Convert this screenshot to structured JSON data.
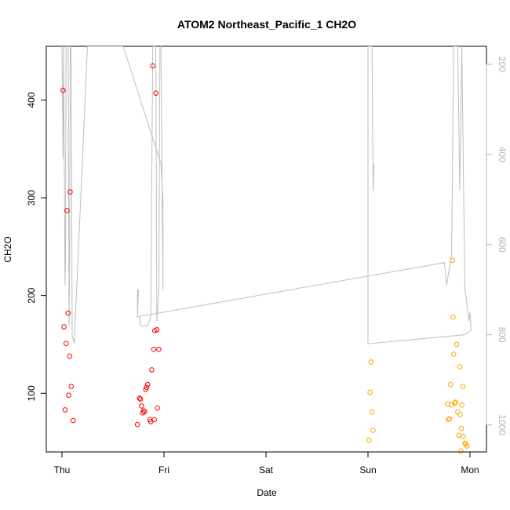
{
  "chart_data": {
    "type": "scatter",
    "title": "ATOM2 Northeast_Pacific_1 CH2O",
    "xlabel": "Date",
    "ylabel": "CH2O",
    "x_ticks": [
      "Thu",
      "Fri",
      "Sat",
      "Sun",
      "Mon"
    ],
    "x_range_days": [
      -0.08,
      4.16
    ],
    "ylim": [
      40,
      455
    ],
    "y_ticks": [
      100,
      200,
      300,
      400
    ],
    "y2_ticks": [
      200,
      400,
      600,
      800,
      1000
    ],
    "y2lim": [
      1060,
      160
    ],
    "y2_reversed": true,
    "grid": false,
    "colors": {
      "series1": "#ff0000",
      "series2": "#ffa500",
      "pressure_line": "#bebebe",
      "axis": "#000000",
      "y2_axis": "#b4b4b4"
    },
    "series": [
      {
        "color": "#ff0000",
        "points": [
          [
            0.01,
            410
          ],
          [
            0.02,
            168
          ],
          [
            0.03,
            83
          ],
          [
            0.04,
            151
          ],
          [
            0.05,
            287
          ],
          [
            0.06,
            182
          ],
          [
            0.065,
            98
          ],
          [
            0.075,
            138
          ],
          [
            0.08,
            306
          ],
          [
            0.09,
            107
          ],
          [
            0.11,
            72
          ],
          [
            0.74,
            68
          ],
          [
            0.76,
            95
          ],
          [
            0.77,
            94
          ],
          [
            0.78,
            87
          ],
          [
            0.79,
            80
          ],
          [
            0.8,
            82
          ],
          [
            0.81,
            81
          ],
          [
            0.82,
            104
          ],
          [
            0.83,
            106
          ],
          [
            0.84,
            109
          ],
          [
            0.86,
            73
          ],
          [
            0.87,
            71
          ],
          [
            0.88,
            124
          ],
          [
            0.89,
            435
          ],
          [
            0.9,
            145
          ],
          [
            0.905,
            73
          ],
          [
            0.91,
            164
          ],
          [
            0.92,
            407
          ],
          [
            0.93,
            165
          ],
          [
            0.935,
            85
          ],
          [
            0.95,
            145
          ]
        ]
      },
      {
        "color": "#ffa500",
        "points": [
          [
            3.01,
            52
          ],
          [
            3.02,
            101
          ],
          [
            3.03,
            132
          ],
          [
            3.04,
            81
          ],
          [
            3.05,
            62
          ],
          [
            3.78,
            89
          ],
          [
            3.79,
            73
          ],
          [
            3.8,
            74
          ],
          [
            3.81,
            109
          ],
          [
            3.82,
            88
          ],
          [
            3.83,
            236
          ],
          [
            3.835,
            178
          ],
          [
            3.84,
            140
          ],
          [
            3.85,
            90
          ],
          [
            3.86,
            91
          ],
          [
            3.87,
            150
          ],
          [
            3.88,
            81
          ],
          [
            3.89,
            57
          ],
          [
            3.9,
            127
          ],
          [
            3.905,
            78
          ],
          [
            3.91,
            41
          ],
          [
            3.915,
            64
          ],
          [
            3.92,
            88
          ],
          [
            3.93,
            107
          ],
          [
            3.935,
            56
          ],
          [
            3.95,
            49
          ],
          [
            3.96,
            48
          ],
          [
            3.97,
            46
          ]
        ]
      }
    ],
    "pressure_line": [
      [
        0.0,
        160
      ],
      [
        0.01,
        410
      ],
      [
        0.015,
        160
      ],
      [
        0.03,
        690
      ],
      [
        0.035,
        630
      ],
      [
        0.04,
        160
      ],
      [
        0.06,
        160
      ],
      [
        0.07,
        780
      ],
      [
        0.075,
        600
      ],
      [
        0.08,
        160
      ],
      [
        0.09,
        160
      ],
      [
        0.1,
        800
      ],
      [
        0.12,
        820
      ],
      [
        0.25,
        160
      ],
      [
        0.3,
        160
      ],
      [
        0.6,
        160
      ],
      [
        0.97,
        420
      ],
      [
        0.99,
        500
      ],
      [
        0.99,
        700
      ],
      [
        0.97,
        160
      ],
      [
        0.96,
        160
      ],
      [
        0.95,
        700
      ],
      [
        0.93,
        770
      ],
      [
        0.92,
        160
      ],
      [
        0.9,
        160
      ],
      [
        0.89,
        160
      ],
      [
        0.87,
        760
      ],
      [
        0.84,
        780
      ],
      [
        0.8,
        780
      ],
      [
        0.77,
        780
      ],
      [
        0.76,
        760
      ],
      [
        0.75,
        760
      ],
      [
        0.74,
        760
      ],
      [
        0.75,
        700
      ],
      [
        0.74,
        700
      ],
      [
        0.74,
        760
      ],
      [
        3.75,
        640
      ],
      [
        3.77,
        690
      ],
      [
        3.8,
        650
      ],
      [
        3.82,
        620
      ],
      [
        3.84,
        160
      ],
      [
        3.88,
        160
      ],
      [
        3.9,
        480
      ],
      [
        3.92,
        160
      ],
      [
        3.95,
        700
      ],
      [
        3.97,
        730
      ],
      [
        3.99,
        770
      ],
      [
        4.0,
        750
      ],
      [
        4.01,
        790
      ],
      [
        3.95,
        800
      ],
      [
        3.0,
        820
      ],
      [
        3.0,
        160
      ],
      [
        3.04,
        160
      ],
      [
        3.05,
        480
      ],
      [
        3.06,
        420
      ]
    ]
  }
}
